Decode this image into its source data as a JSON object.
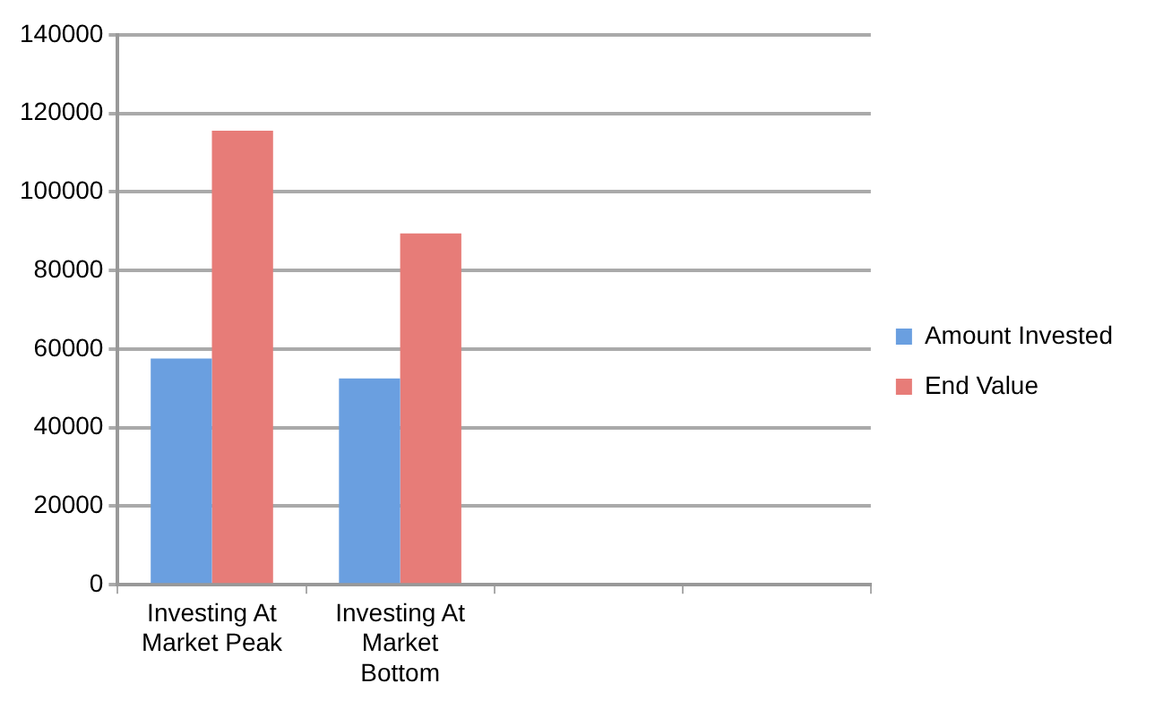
{
  "chart_data": {
    "type": "bar",
    "categories": [
      "Investing At Market Peak",
      "Investing At Market Bottom",
      null,
      null
    ],
    "series": [
      {
        "name": "Amount Invested",
        "color": "#6a9fe0",
        "values": [
          57600,
          52500,
          null,
          null
        ]
      },
      {
        "name": "End Value",
        "color": "#e77c78",
        "values": [
          115600,
          89400,
          null,
          null
        ]
      }
    ],
    "ylim": [
      0,
      140000
    ],
    "yticks": [
      0,
      20000,
      40000,
      60000,
      80000,
      100000,
      120000,
      140000
    ],
    "grid": "y",
    "legend": "right"
  }
}
